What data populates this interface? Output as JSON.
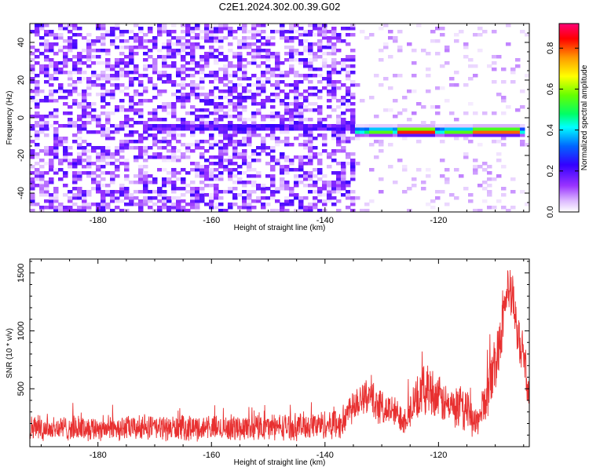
{
  "title": "C2E1.2024.302.00.39.G02",
  "colors": {
    "snr_line": "#e83030",
    "colormap": [
      "#ffffff",
      "#cc99ff",
      "#7a00ff",
      "#0000ff",
      "#00ffff",
      "#00ff00",
      "#ffff00",
      "#ff8800",
      "#ff0000",
      "#ff0088"
    ]
  },
  "chart_data": [
    {
      "type": "heatmap",
      "xlabel": "Height of straight line (km)",
      "ylabel": "Frequency (Hz)",
      "xlim": [
        -192,
        -104
      ],
      "ylim": [
        -50,
        50
      ],
      "x_ticks": [
        -180,
        -160,
        -140,
        -120
      ],
      "y_ticks": [
        -40,
        -20,
        0,
        20,
        40
      ],
      "colorbar": {
        "label": "Normalized spectral amplitude",
        "range": [
          0,
          0.92
        ],
        "ticks": [
          0.0,
          0.2,
          0.4,
          0.6,
          0.8
        ]
      },
      "features": {
        "noise_region_x": [
          -192,
          -135
        ],
        "noise_amplitude": 0.2,
        "signal_track": {
          "x_start": -135,
          "x_end": -105,
          "freq_hz": -7,
          "peak_amplitude": 0.9,
          "peak_x": [
            -124,
            -110
          ]
        },
        "weak_track_x": [
          -170,
          -135
        ],
        "weak_track_freq_hz": -5
      }
    },
    {
      "type": "line",
      "xlabel": "Height of straight line (km)",
      "ylabel": "SNR (10 * v/v)",
      "xlim": [
        -192,
        -104
      ],
      "ylim": [
        0,
        1620
      ],
      "x_ticks": [
        -180,
        -160,
        -140,
        -120
      ],
      "y_ticks": [
        500,
        1000,
        1500
      ],
      "series": [
        {
          "envelope_x": [
            -192,
            -180,
            -160,
            -145,
            -137,
            -135,
            -133,
            -131,
            -128,
            -126,
            -124,
            -122,
            -121,
            -119,
            -117,
            -115,
            -113,
            -112,
            -110,
            -109,
            -108,
            -107,
            -106,
            -105,
            -104
          ],
          "envelope_mean": [
            160,
            160,
            160,
            175,
            200,
            380,
            450,
            360,
            300,
            240,
            380,
            520,
            470,
            370,
            320,
            300,
            200,
            370,
            700,
            1000,
            1350,
            1280,
            950,
            800,
            400
          ],
          "noise_amplitude": [
            120,
            120,
            120,
            130,
            150,
            190,
            190,
            170,
            160,
            150,
            200,
            260,
            230,
            200,
            200,
            200,
            150,
            220,
            280,
            280,
            240,
            240,
            220,
            200,
            150
          ]
        }
      ]
    }
  ]
}
